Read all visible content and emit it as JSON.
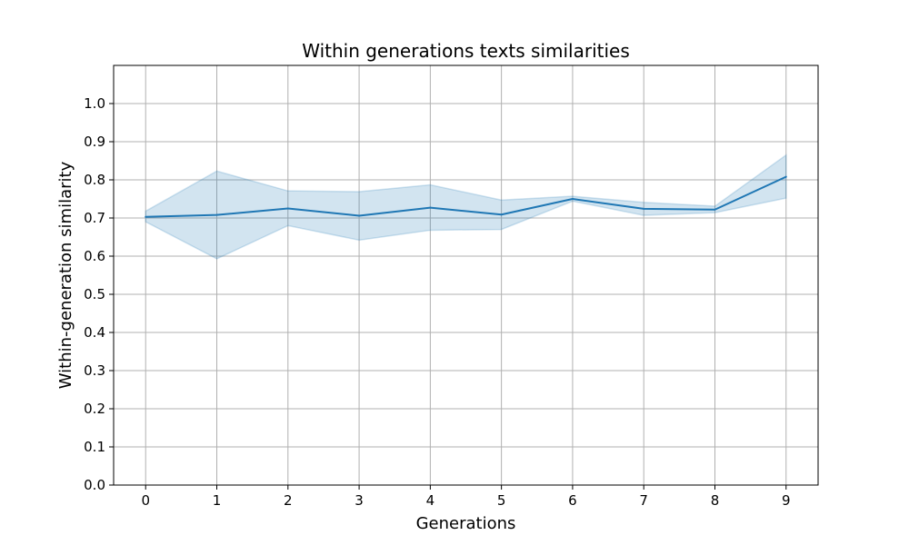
{
  "chart_data": {
    "type": "line",
    "title": "Within generations texts similarities",
    "xlabel": "Generations",
    "ylabel": "Within-generation similarity",
    "x": [
      0,
      1,
      2,
      3,
      4,
      5,
      6,
      7,
      8,
      9
    ],
    "xticks": [
      "0",
      "1",
      "2",
      "3",
      "4",
      "5",
      "6",
      "7",
      "8",
      "9"
    ],
    "xlim": [
      -0.45,
      9.45
    ],
    "ylim": [
      0.0,
      1.1
    ],
    "yticks": [
      "0.0",
      "0.1",
      "0.2",
      "0.3",
      "0.4",
      "0.5",
      "0.6",
      "0.7",
      "0.8",
      "0.9",
      "1.0"
    ],
    "grid": true,
    "series": [
      {
        "values": [
          0.703,
          0.708,
          0.725,
          0.706,
          0.727,
          0.709,
          0.75,
          0.724,
          0.722,
          0.808
        ],
        "band_upper": [
          0.718,
          0.823,
          0.771,
          0.769,
          0.787,
          0.747,
          0.757,
          0.741,
          0.731,
          0.865
        ],
        "band_lower": [
          0.69,
          0.593,
          0.68,
          0.642,
          0.668,
          0.67,
          0.744,
          0.707,
          0.714,
          0.752
        ],
        "color": "#1f77b4",
        "band_color": "#1f77b4",
        "band_opacity": 0.2
      }
    ]
  }
}
